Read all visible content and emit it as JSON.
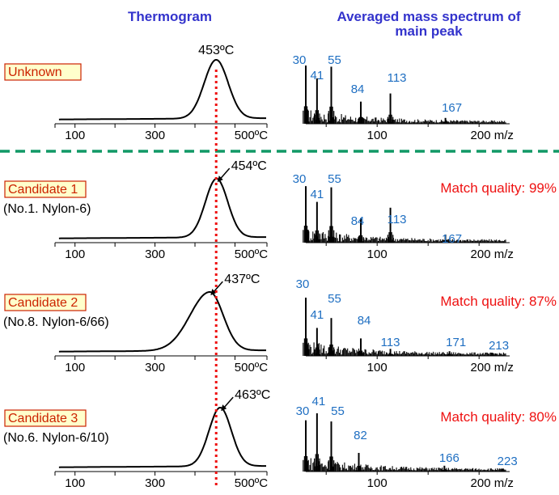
{
  "header": {
    "thermogram_title": "Thermogram",
    "spectrum_title_line1": "Averaged mass spectrum of",
    "spectrum_title_line2": "main peak"
  },
  "colors": {
    "header": "#3333cc",
    "mz_label": "#1f6fc2",
    "match_quality": "#ee1111",
    "reference_line": "#ee1111",
    "divider": "#119966",
    "label_box_fill": "#ffffcc",
    "label_box_border": "#cc2200",
    "label_text": "#cc2200"
  },
  "panels": [
    {
      "id": "unknown",
      "label": "Unknown",
      "subtitle": "",
      "peak_label": "453ºC",
      "match_quality": "",
      "thermo_axis_labels": [
        "100",
        "300",
        "500ºC"
      ],
      "ms_axis_labels": [
        "100",
        "200 m/z"
      ]
    },
    {
      "id": "candidate-1",
      "label": "Candidate 1",
      "subtitle": "(No.1. Nylon-6)",
      "peak_label": "454ºC",
      "match_quality": "Match quality: 99%",
      "thermo_axis_labels": [
        "100",
        "300",
        "500ºC"
      ],
      "ms_axis_labels": [
        "100",
        "200 m/z"
      ]
    },
    {
      "id": "candidate-2",
      "label": "Candidate 2",
      "subtitle": "(No.8. Nylon-6/66)",
      "peak_label": "437ºC",
      "match_quality": "Match quality: 87%",
      "thermo_axis_labels": [
        "100",
        "300",
        "500ºC"
      ],
      "ms_axis_labels": [
        "100",
        "200 m/z"
      ]
    },
    {
      "id": "candidate-3",
      "label": "Candidate 3",
      "subtitle": "(No.6. Nylon-6/10)",
      "peak_label": "463ºC",
      "match_quality": "Match quality: 80%",
      "thermo_axis_labels": [
        "100",
        "300",
        "500ºC"
      ],
      "ms_axis_labels": [
        "100",
        "200 m/z"
      ]
    }
  ],
  "chart_data": [
    {
      "type": "line",
      "name": "Unknown thermogram",
      "xlim": [
        50,
        580
      ],
      "x_ticks": [
        100,
        200,
        300,
        400,
        500
      ],
      "peak_temperature": 453,
      "peak_width": 30,
      "peak_skew": 0,
      "reference_temperature": 453
    },
    {
      "type": "bar",
      "name": "Unknown averaged mass spectrum",
      "xlim": [
        30,
        230
      ],
      "x_ticks": [
        100,
        200
      ],
      "ylim": [
        0,
        100
      ],
      "labeled_peaks": [
        {
          "mz": 30,
          "intensity": 100,
          "label": "30"
        },
        {
          "mz": 41,
          "intensity": 78,
          "label": "41"
        },
        {
          "mz": 55,
          "intensity": 98,
          "label": "55"
        },
        {
          "mz": 84,
          "intensity": 38,
          "label": "84"
        },
        {
          "mz": 113,
          "intensity": 52,
          "label": "113"
        },
        {
          "mz": 167,
          "intensity": 10,
          "label": "167"
        }
      ]
    },
    {
      "type": "line",
      "name": "Candidate 1 thermogram",
      "xlim": [
        50,
        580
      ],
      "x_ticks": [
        100,
        200,
        300,
        400,
        500
      ],
      "peak_temperature": 454,
      "peak_width": 28,
      "peak_skew": 0,
      "reference_temperature": 453
    },
    {
      "type": "bar",
      "name": "Candidate 1 averaged mass spectrum",
      "xlim": [
        30,
        230
      ],
      "x_ticks": [
        100,
        200
      ],
      "ylim": [
        0,
        100
      ],
      "labeled_peaks": [
        {
          "mz": 30,
          "intensity": 97,
          "label": "30"
        },
        {
          "mz": 41,
          "intensity": 70,
          "label": "41"
        },
        {
          "mz": 55,
          "intensity": 95,
          "label": "55"
        },
        {
          "mz": 84,
          "intensity": 42,
          "label": "84"
        },
        {
          "mz": 113,
          "intensity": 60,
          "label": "113"
        },
        {
          "mz": 167,
          "intensity": 14,
          "label": "167"
        }
      ]
    },
    {
      "type": "line",
      "name": "Candidate 2 thermogram",
      "xlim": [
        50,
        580
      ],
      "x_ticks": [
        100,
        200,
        300,
        400,
        500
      ],
      "peak_temperature": 437,
      "peak_width": 38,
      "peak_skew": 0.3,
      "reference_temperature": 453
    },
    {
      "type": "bar",
      "name": "Candidate 2 averaged mass spectrum",
      "xlim": [
        30,
        230
      ],
      "x_ticks": [
        100,
        200
      ],
      "ylim": [
        0,
        100
      ],
      "labeled_peaks": [
        {
          "mz": 30,
          "intensity": 100,
          "label": "30"
        },
        {
          "mz": 41,
          "intensity": 48,
          "label": "41"
        },
        {
          "mz": 55,
          "intensity": 65,
          "label": "55"
        },
        {
          "mz": 84,
          "intensity": 30,
          "label": "84"
        },
        {
          "mz": 113,
          "intensity": 12,
          "label": "113"
        },
        {
          "mz": 171,
          "intensity": 8,
          "label": "171"
        },
        {
          "mz": 213,
          "intensity": 5,
          "label": "213"
        }
      ]
    },
    {
      "type": "line",
      "name": "Candidate 3 thermogram",
      "xlim": [
        50,
        580
      ],
      "x_ticks": [
        100,
        200,
        300,
        400,
        500
      ],
      "peak_temperature": 463,
      "peak_width": 28,
      "peak_skew": 0,
      "reference_temperature": 453
    },
    {
      "type": "bar",
      "name": "Candidate 3 averaged mass spectrum",
      "xlim": [
        30,
        230
      ],
      "x_ticks": [
        100,
        200
      ],
      "ylim": [
        0,
        100
      ],
      "labeled_peaks": [
        {
          "mz": 30,
          "intensity": 88,
          "label": "30"
        },
        {
          "mz": 41,
          "intensity": 100,
          "label": "41"
        },
        {
          "mz": 55,
          "intensity": 86,
          "label": "55"
        },
        {
          "mz": 82,
          "intensity": 32,
          "label": "82"
        },
        {
          "mz": 166,
          "intensity": 10,
          "label": "166"
        },
        {
          "mz": 223,
          "intensity": 5,
          "label": "223"
        }
      ]
    }
  ]
}
